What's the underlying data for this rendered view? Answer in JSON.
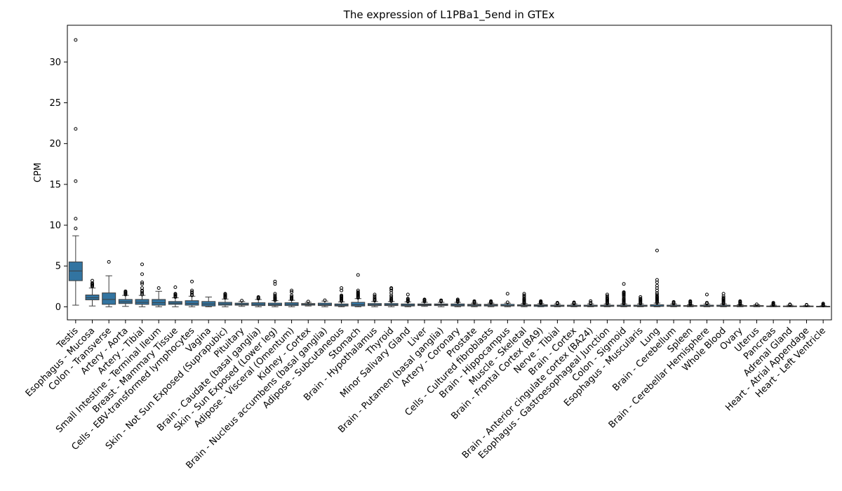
{
  "chart_data": {
    "type": "box",
    "title": "The expression of L1PBa1_5end in GTEx",
    "xlabel": "",
    "ylabel": "CPM",
    "ylim": [
      -1.6,
      34.5
    ],
    "yticks": [
      0,
      5,
      10,
      15,
      20,
      25,
      30
    ],
    "grid": false,
    "box_color": "#3274a1",
    "categories": [
      "Testis",
      "Esophagus - Mucosa",
      "Colon - Transverse",
      "Artery - Aorta",
      "Artery - Tibial",
      "Small Intestine - Terminal Ileum",
      "Breast - Mammary Tissue",
      "Cells - EBV-transformed lymphocytes",
      "Vagina",
      "Skin - Not Sun Exposed (Suprapubic)",
      "Pituitary",
      "Brain - Caudate (basal ganglia)",
      "Skin - Sun Exposed (Lower leg)",
      "Adipose - Visceral (Omentum)",
      "Kidney - Cortex",
      "Brain - Nucleus accumbens (basal ganglia)",
      "Adipose - Subcutaneous",
      "Stomach",
      "Brain - Hypothalamus",
      "Thyroid",
      "Minor Salivary Gland",
      "Liver",
      "Brain - Putamen (basal ganglia)",
      "Artery - Coronary",
      "Prostate",
      "Cells - Cultured fibroblasts",
      "Brain - Hippocampus",
      "Muscle - Skeletal",
      "Brain - Frontal Cortex (BA9)",
      "Nerve - Tibial",
      "Brain - Cortex",
      "Brain - Anterior cingulate cortex (BA24)",
      "Esophagus - Gastroesophageal Junction",
      "Colon - Sigmoid",
      "Esophagus - Muscularis",
      "Lung",
      "Brain - Cerebellum",
      "Spleen",
      "Brain - Cerebellar Hemisphere",
      "Whole Blood",
      "Ovary",
      "Uterus",
      "Pancreas",
      "Adrenal Gland",
      "Heart - Atrial Appendage",
      "Heart - Left Ventricle"
    ],
    "boxes": [
      {
        "q1": 3.2,
        "median": 4.4,
        "q3": 5.5,
        "whislo": 0.2,
        "whishi": 8.7,
        "fliers": [
          9.6,
          10.8,
          15.4,
          21.8,
          32.7
        ]
      },
      {
        "q1": 0.85,
        "median": 1.1,
        "q3": 1.45,
        "whislo": 0.1,
        "whishi": 2.3,
        "fliers": [
          2.5,
          2.6,
          2.7,
          2.8,
          2.9,
          3.2
        ]
      },
      {
        "q1": 0.3,
        "median": 0.9,
        "q3": 1.7,
        "whislo": 0.0,
        "whishi": 3.8,
        "fliers": [
          5.5
        ]
      },
      {
        "q1": 0.4,
        "median": 0.6,
        "q3": 0.9,
        "whislo": 0.05,
        "whishi": 1.4,
        "fliers": [
          1.5,
          1.6,
          1.7,
          1.8,
          1.9
        ]
      },
      {
        "q1": 0.3,
        "median": 0.55,
        "q3": 0.9,
        "whislo": 0.0,
        "whishi": 1.4,
        "fliers": [
          1.5,
          1.7,
          1.9,
          2.0,
          2.3,
          2.8,
          3.0,
          4.0,
          5.2
        ]
      },
      {
        "q1": 0.2,
        "median": 0.5,
        "q3": 0.9,
        "whislo": 0.0,
        "whishi": 1.9,
        "fliers": [
          2.3
        ]
      },
      {
        "q1": 0.3,
        "median": 0.45,
        "q3": 0.65,
        "whislo": 0.0,
        "whishi": 1.1,
        "fliers": [
          1.2,
          1.3,
          1.4,
          1.5,
          1.6,
          2.4
        ]
      },
      {
        "q1": 0.2,
        "median": 0.4,
        "q3": 0.75,
        "whislo": 0.0,
        "whishi": 1.3,
        "fliers": [
          1.4,
          1.5,
          1.7,
          1.8,
          2.0,
          3.1
        ]
      },
      {
        "q1": 0.1,
        "median": 0.35,
        "q3": 0.65,
        "whislo": 0.0,
        "whishi": 1.2,
        "fliers": []
      },
      {
        "q1": 0.2,
        "median": 0.35,
        "q3": 0.55,
        "whislo": 0.0,
        "whishi": 0.95,
        "fliers": [
          1.1,
          1.2,
          1.3,
          1.4,
          1.5,
          1.6
        ]
      },
      {
        "q1": 0.2,
        "median": 0.3,
        "q3": 0.45,
        "whislo": 0.05,
        "whishi": 0.65,
        "fliers": [
          0.75
        ]
      },
      {
        "q1": 0.15,
        "median": 0.3,
        "q3": 0.5,
        "whislo": 0.0,
        "whishi": 0.9,
        "fliers": [
          1.0,
          1.1,
          1.2
        ]
      },
      {
        "q1": 0.15,
        "median": 0.25,
        "q3": 0.45,
        "whislo": 0.0,
        "whishi": 0.75,
        "fliers": [
          0.8,
          0.9,
          1.0,
          1.1,
          1.2,
          1.4,
          1.6,
          2.8,
          3.1
        ]
      },
      {
        "q1": 0.15,
        "median": 0.3,
        "q3": 0.5,
        "whislo": 0.0,
        "whishi": 0.8,
        "fliers": [
          0.9,
          1.0,
          1.1,
          1.2,
          1.4,
          1.8,
          2.0
        ]
      },
      {
        "q1": 0.2,
        "median": 0.3,
        "q3": 0.4,
        "whislo": 0.1,
        "whishi": 0.55,
        "fliers": [
          0.65
        ]
      },
      {
        "q1": 0.15,
        "median": 0.25,
        "q3": 0.45,
        "whislo": 0.0,
        "whishi": 0.7,
        "fliers": [
          0.8
        ]
      },
      {
        "q1": 0.1,
        "median": 0.2,
        "q3": 0.35,
        "whislo": 0.0,
        "whishi": 0.6,
        "fliers": [
          0.7,
          0.8,
          0.9,
          1.0,
          1.1,
          1.2,
          1.3,
          1.4,
          2.0,
          2.3
        ]
      },
      {
        "q1": 0.1,
        "median": 0.25,
        "q3": 0.55,
        "whislo": 0.0,
        "whishi": 1.0,
        "fliers": [
          1.1,
          1.2,
          1.3,
          1.4,
          1.5,
          1.6,
          1.7,
          1.8,
          2.0,
          3.9
        ]
      },
      {
        "q1": 0.15,
        "median": 0.25,
        "q3": 0.4,
        "whislo": 0.0,
        "whishi": 0.65,
        "fliers": [
          0.75,
          0.85,
          0.95,
          1.1,
          1.3,
          1.5
        ]
      },
      {
        "q1": 0.15,
        "median": 0.25,
        "q3": 0.4,
        "whislo": 0.0,
        "whishi": 0.65,
        "fliers": [
          0.7,
          0.8,
          0.9,
          1.0,
          1.2,
          1.4,
          1.7,
          2.0,
          2.2,
          2.3
        ]
      },
      {
        "q1": 0.1,
        "median": 0.2,
        "q3": 0.35,
        "whislo": 0.0,
        "whishi": 0.6,
        "fliers": [
          0.65,
          0.7,
          0.8,
          0.9,
          1.0,
          1.5
        ]
      },
      {
        "q1": 0.15,
        "median": 0.25,
        "q3": 0.35,
        "whislo": 0.05,
        "whishi": 0.55,
        "fliers": [
          0.65,
          0.75,
          0.85,
          0.9
        ]
      },
      {
        "q1": 0.15,
        "median": 0.25,
        "q3": 0.35,
        "whislo": 0.0,
        "whishi": 0.55,
        "fliers": [
          0.65,
          0.7,
          0.8
        ]
      },
      {
        "q1": 0.1,
        "median": 0.2,
        "q3": 0.35,
        "whislo": 0.0,
        "whishi": 0.55,
        "fliers": [
          0.6,
          0.7,
          0.8,
          0.9
        ]
      },
      {
        "q1": 0.1,
        "median": 0.2,
        "q3": 0.3,
        "whislo": 0.0,
        "whishi": 0.45,
        "fliers": [
          0.5,
          0.6,
          0.7
        ]
      },
      {
        "q1": 0.1,
        "median": 0.2,
        "q3": 0.3,
        "whislo": 0.0,
        "whishi": 0.45,
        "fliers": [
          0.5,
          0.55,
          0.6,
          0.7
        ]
      },
      {
        "q1": 0.1,
        "median": 0.15,
        "q3": 0.3,
        "whislo": 0.0,
        "whishi": 0.45,
        "fliers": [
          0.55,
          1.6
        ]
      },
      {
        "q1": 0.1,
        "median": 0.15,
        "q3": 0.25,
        "whislo": 0.0,
        "whishi": 0.4,
        "fliers": [
          0.45,
          0.5,
          0.6,
          0.7,
          0.8,
          0.9,
          1.0,
          1.2,
          1.4,
          1.6
        ]
      },
      {
        "q1": 0.05,
        "median": 0.15,
        "q3": 0.25,
        "whislo": 0.0,
        "whishi": 0.4,
        "fliers": [
          0.45,
          0.5,
          0.55,
          0.6,
          0.7
        ]
      },
      {
        "q1": 0.05,
        "median": 0.1,
        "q3": 0.2,
        "whislo": 0.0,
        "whishi": 0.35,
        "fliers": [
          0.4,
          0.45,
          0.5
        ]
      },
      {
        "q1": 0.05,
        "median": 0.1,
        "q3": 0.2,
        "whislo": 0.0,
        "whishi": 0.35,
        "fliers": [
          0.4,
          0.45,
          0.5,
          0.55
        ]
      },
      {
        "q1": 0.05,
        "median": 0.1,
        "q3": 0.2,
        "whislo": 0.0,
        "whishi": 0.35,
        "fliers": [
          0.4,
          0.5,
          0.7
        ]
      },
      {
        "q1": 0.05,
        "median": 0.1,
        "q3": 0.2,
        "whislo": 0.0,
        "whishi": 0.35,
        "fliers": [
          0.4,
          0.5,
          0.6,
          0.7,
          0.8,
          0.9,
          1.0,
          1.1,
          1.3,
          1.5
        ]
      },
      {
        "q1": 0.05,
        "median": 0.1,
        "q3": 0.2,
        "whislo": 0.0,
        "whishi": 0.35,
        "fliers": [
          0.4,
          0.5,
          0.6,
          0.7,
          0.8,
          0.9,
          1.0,
          1.2,
          1.4,
          1.5,
          1.6,
          1.7,
          1.8,
          2.8
        ]
      },
      {
        "q1": 0.05,
        "median": 0.1,
        "q3": 0.2,
        "whislo": 0.0,
        "whishi": 0.35,
        "fliers": [
          0.4,
          0.5,
          0.6,
          0.7,
          0.8,
          0.9,
          1.0,
          1.2
        ]
      },
      {
        "q1": 0.05,
        "median": 0.1,
        "q3": 0.25,
        "whislo": 0.0,
        "whishi": 0.45,
        "fliers": [
          0.5,
          0.6,
          0.7,
          0.8,
          0.9,
          1.0,
          1.1,
          1.2,
          1.3,
          1.5,
          1.7,
          2.0,
          2.3,
          2.6,
          3.0,
          3.3,
          6.9
        ]
      },
      {
        "q1": 0.05,
        "median": 0.1,
        "q3": 0.2,
        "whislo": 0.0,
        "whishi": 0.35,
        "fliers": [
          0.4,
          0.5,
          0.6
        ]
      },
      {
        "q1": 0.05,
        "median": 0.1,
        "q3": 0.15,
        "whislo": 0.0,
        "whishi": 0.25,
        "fliers": [
          0.3,
          0.4,
          0.5,
          0.6,
          0.7
        ]
      },
      {
        "q1": 0.05,
        "median": 0.1,
        "q3": 0.2,
        "whislo": 0.0,
        "whishi": 0.35,
        "fliers": [
          0.4,
          0.5,
          1.5
        ]
      },
      {
        "q1": 0.05,
        "median": 0.1,
        "q3": 0.2,
        "whislo": 0.0,
        "whishi": 0.35,
        "fliers": [
          0.4,
          0.5,
          0.6,
          0.7,
          0.8,
          0.9,
          1.0,
          1.1,
          1.3,
          1.6
        ]
      },
      {
        "q1": 0.05,
        "median": 0.1,
        "q3": 0.15,
        "whislo": 0.0,
        "whishi": 0.25,
        "fliers": [
          0.3,
          0.4,
          0.5,
          0.6,
          0.7
        ]
      },
      {
        "q1": 0.05,
        "median": 0.1,
        "q3": 0.15,
        "whislo": 0.0,
        "whishi": 0.25,
        "fliers": [
          0.3
        ]
      },
      {
        "q1": 0.02,
        "median": 0.05,
        "q3": 0.1,
        "whislo": 0.0,
        "whishi": 0.2,
        "fliers": [
          0.25,
          0.3,
          0.35,
          0.4,
          0.5
        ]
      },
      {
        "q1": 0.02,
        "median": 0.05,
        "q3": 0.1,
        "whislo": 0.0,
        "whishi": 0.2,
        "fliers": [
          0.25,
          0.3
        ]
      },
      {
        "q1": 0.02,
        "median": 0.05,
        "q3": 0.1,
        "whislo": 0.0,
        "whishi": 0.15,
        "fliers": [
          0.2,
          0.25
        ]
      },
      {
        "q1": 0.0,
        "median": 0.03,
        "q3": 0.07,
        "whislo": 0.0,
        "whishi": 0.12,
        "fliers": [
          0.15,
          0.2,
          0.3,
          0.4
        ]
      }
    ]
  }
}
